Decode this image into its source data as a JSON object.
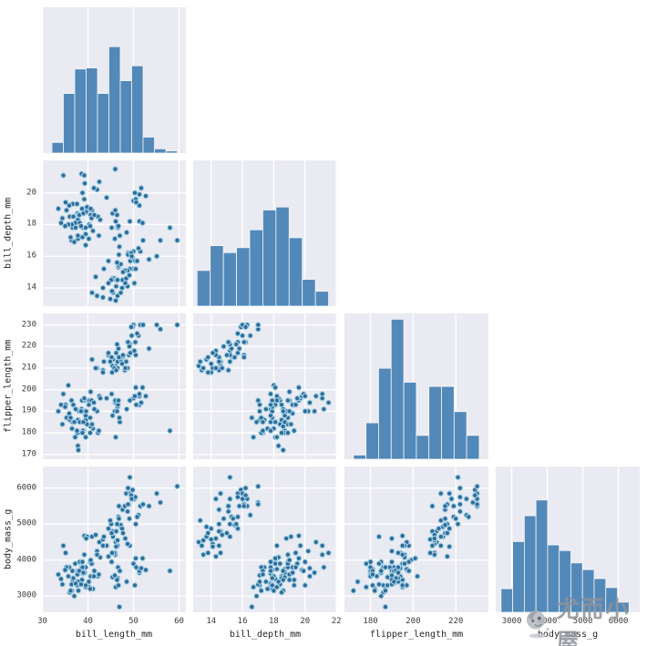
{
  "watermark": {
    "text": "尤而小屋",
    "logo": "mascot-avatar-icon"
  },
  "style": {
    "figure_bg": "#ffffff",
    "panel_bg": "#eaebf2",
    "grid_color": "#ffffff",
    "bar_color": "#5389b9",
    "bar_edge": "#f4f6f9",
    "dot_fill": "#2e6d99",
    "dot_edge": "#a9d2e8",
    "tick_color": "#3a3a3a",
    "label_color": "#262626",
    "watermark_color": "#8d939b"
  },
  "chart_data": {
    "type": "pairplot",
    "subtype": "lower-triangle corner pairplot: histograms on diagonal, scatter plots below",
    "grid": true,
    "legend": "none",
    "variables": [
      {
        "name": "bill_length_mm",
        "range": [
          29.9,
          61.5
        ],
        "x_ticks": [
          30,
          40,
          50,
          60
        ],
        "y_ticks": []
      },
      {
        "name": "bill_depth_mm",
        "range": [
          12.85,
          22.05
        ],
        "x_ticks": [
          14,
          16,
          18,
          20,
          22
        ],
        "y_ticks": [
          14,
          16,
          18,
          20
        ]
      },
      {
        "name": "flipper_length_mm",
        "range": [
          167.8,
          235.3
        ],
        "x_ticks": [
          180,
          200,
          220
        ],
        "y_ticks": [
          170,
          180,
          190,
          200,
          210,
          220,
          230
        ]
      },
      {
        "name": "body_mass_g",
        "range": [
          2550,
          6600
        ],
        "x_ticks": [
          3000,
          4000,
          5000,
          6000
        ],
        "y_ticks": [
          3000,
          4000,
          5000,
          6000
        ]
      }
    ],
    "histograms": [
      {
        "variable": "bill_length_mm",
        "bin_start": 32.1,
        "bin_end": 59.6,
        "peak_fraction": 0.73,
        "heights": [
          0.1,
          0.56,
          0.79,
          0.8,
          0.56,
          1.0,
          0.68,
          0.82,
          0.15,
          0.04,
          0.02
        ]
      },
      {
        "variable": "bill_depth_mm",
        "bin_start": 13.1,
        "bin_end": 21.5,
        "peak_fraction": 0.68,
        "heights": [
          0.36,
          0.61,
          0.54,
          0.59,
          0.77,
          0.97,
          1.0,
          0.69,
          0.27,
          0.15
        ]
      },
      {
        "variable": "flipper_length_mm",
        "bin_start": 172,
        "bin_end": 231,
        "peak_fraction": 0.96,
        "heights": [
          0.03,
          0.26,
          0.65,
          1.0,
          0.55,
          0.17,
          0.52,
          0.52,
          0.34,
          0.17
        ]
      },
      {
        "variable": "body_mass_g",
        "bin_start": 2700,
        "bin_end": 6300,
        "peak_fraction": 0.77,
        "heights": [
          0.21,
          0.63,
          0.86,
          1.0,
          0.6,
          0.55,
          0.44,
          0.38,
          0.3,
          0.22,
          0.09
        ]
      }
    ],
    "records_columns": [
      "bill_length_mm",
      "bill_depth_mm",
      "flipper_length_mm",
      "body_mass_g"
    ],
    "records": [
      [
        39.1,
        18.7,
        181,
        3750
      ],
      [
        39.5,
        17.4,
        186,
        3800
      ],
      [
        40.3,
        18.0,
        195,
        3250
      ],
      [
        36.7,
        19.3,
        193,
        3450
      ],
      [
        39.3,
        20.6,
        190,
        3650
      ],
      [
        38.9,
        17.8,
        181,
        3625
      ],
      [
        39.2,
        19.6,
        195,
        4675
      ],
      [
        34.1,
        18.1,
        193,
        3475
      ],
      [
        42.0,
        20.2,
        190,
        4250
      ],
      [
        37.8,
        17.1,
        186,
        3300
      ],
      [
        37.8,
        17.3,
        180,
        3700
      ],
      [
        41.1,
        17.6,
        182,
        3200
      ],
      [
        38.6,
        21.2,
        191,
        3800
      ],
      [
        34.6,
        21.1,
        198,
        4400
      ],
      [
        36.6,
        17.8,
        185,
        3700
      ],
      [
        38.7,
        19.0,
        195,
        3450
      ],
      [
        42.5,
        20.7,
        197,
        4500
      ],
      [
        34.4,
        18.4,
        184,
        3325
      ],
      [
        46.0,
        21.5,
        194,
        4200
      ],
      [
        37.8,
        18.3,
        174,
        3400
      ],
      [
        37.7,
        18.7,
        180,
        3600
      ],
      [
        35.9,
        19.2,
        189,
        3800
      ],
      [
        38.2,
        18.1,
        185,
        3950
      ],
      [
        38.8,
        17.2,
        180,
        3800
      ],
      [
        35.3,
        18.9,
        187,
        3800
      ],
      [
        40.6,
        18.6,
        183,
        3550
      ],
      [
        40.5,
        17.9,
        187,
        3200
      ],
      [
        37.9,
        18.6,
        172,
        3150
      ],
      [
        40.5,
        18.9,
        180,
        3950
      ],
      [
        39.5,
        16.7,
        178,
        3250
      ],
      [
        37.2,
        18.1,
        178,
        3900
      ],
      [
        39.5,
        17.8,
        188,
        3300
      ],
      [
        40.9,
        18.9,
        184,
        3900
      ],
      [
        36.4,
        17.0,
        195,
        3325
      ],
      [
        39.2,
        21.1,
        196,
        4150
      ],
      [
        38.8,
        20.0,
        190,
        3950
      ],
      [
        42.2,
        18.5,
        180,
        3550
      ],
      [
        37.6,
        19.3,
        181,
        3300
      ],
      [
        39.8,
        19.1,
        184,
        4650
      ],
      [
        36.5,
        18.0,
        182,
        3150
      ],
      [
        40.8,
        18.4,
        195,
        3900
      ],
      [
        36.0,
        18.5,
        186,
        3100
      ],
      [
        44.1,
        19.7,
        196,
        4400
      ],
      [
        37.0,
        16.9,
        185,
        3000
      ],
      [
        39.6,
        18.8,
        190,
        4600
      ],
      [
        35.1,
        19.4,
        193,
        4200
      ],
      [
        38.1,
        18.6,
        190,
        3700
      ],
      [
        40.2,
        17.1,
        193,
        3400
      ],
      [
        36.2,
        17.2,
        187,
        3150
      ],
      [
        41.3,
        20.3,
        194,
        3550
      ],
      [
        35.7,
        18.0,
        202,
        3550
      ],
      [
        37.3,
        17.8,
        191,
        3350
      ],
      [
        39.0,
        18.7,
        185,
        3650
      ],
      [
        38.5,
        17.9,
        190,
        3325
      ],
      [
        36.8,
        18.5,
        193,
        3500
      ],
      [
        42.7,
        18.3,
        196,
        4075
      ],
      [
        33.5,
        19.0,
        190,
        3600
      ],
      [
        41.4,
        18.6,
        191,
        3700
      ],
      [
        35.0,
        17.9,
        192,
        3725
      ],
      [
        40.6,
        19.0,
        199,
        4000
      ],
      [
        46.5,
        17.9,
        192,
        3500
      ],
      [
        50.0,
        19.5,
        196,
        3900
      ],
      [
        51.3,
        19.2,
        193,
        3650
      ],
      [
        45.4,
        18.7,
        188,
        3525
      ],
      [
        52.7,
        19.8,
        197,
        3725
      ],
      [
        45.2,
        17.8,
        198,
        3950
      ],
      [
        46.1,
        18.2,
        178,
        3250
      ],
      [
        51.3,
        18.2,
        197,
        3750
      ],
      [
        46.0,
        18.9,
        195,
        4150
      ],
      [
        51.3,
        19.9,
        198,
        3700
      ],
      [
        46.6,
        17.8,
        193,
        3800
      ],
      [
        51.7,
        20.3,
        194,
        3775
      ],
      [
        47.0,
        17.3,
        185,
        3700
      ],
      [
        52.0,
        18.1,
        201,
        4050
      ],
      [
        45.9,
        17.1,
        190,
        3575
      ],
      [
        50.5,
        19.6,
        201,
        4050
      ],
      [
        50.3,
        20.0,
        197,
        3300
      ],
      [
        58.0,
        17.8,
        181,
        3700
      ],
      [
        46.4,
        18.6,
        190,
        3450
      ],
      [
        49.2,
        18.2,
        195,
        4400
      ],
      [
        42.4,
        17.3,
        181,
        3600
      ],
      [
        48.5,
        17.5,
        191,
        3400
      ],
      [
        46.9,
        16.6,
        187,
        2700
      ],
      [
        50.6,
        19.4,
        193,
        3800
      ],
      [
        46.7,
        17.9,
        195,
        3300
      ],
      [
        46.1,
        13.2,
        211,
        4500
      ],
      [
        50.0,
        16.3,
        230,
        5700
      ],
      [
        48.7,
        14.1,
        210,
        4450
      ],
      [
        50.0,
        15.2,
        218,
        5700
      ],
      [
        47.6,
        14.5,
        215,
        5400
      ],
      [
        46.5,
        13.5,
        210,
        4550
      ],
      [
        45.4,
        14.6,
        211,
        4800
      ],
      [
        46.7,
        15.3,
        219,
        5200
      ],
      [
        43.3,
        13.4,
        209,
        4400
      ],
      [
        46.8,
        15.4,
        215,
        5150
      ],
      [
        40.9,
        13.7,
        214,
        4650
      ],
      [
        49.0,
        16.1,
        216,
        5550
      ],
      [
        45.5,
        13.7,
        214,
        4650
      ],
      [
        48.4,
        14.6,
        213,
        5850
      ],
      [
        45.8,
        14.6,
        210,
        4200
      ],
      [
        49.3,
        15.7,
        217,
        5850
      ],
      [
        42.0,
        13.5,
        210,
        4150
      ],
      [
        49.2,
        15.2,
        221,
        6300
      ],
      [
        46.2,
        14.5,
        209,
        4800
      ],
      [
        48.7,
        15.1,
        222,
        5350
      ],
      [
        50.2,
        14.3,
        218,
        5700
      ],
      [
        45.1,
        14.5,
        215,
        5000
      ],
      [
        46.5,
        14.5,
        213,
        4400
      ],
      [
        55.9,
        17.0,
        228,
        5600
      ],
      [
        44.5,
        14.3,
        216,
        4100
      ],
      [
        48.8,
        16.2,
        222,
        6000
      ],
      [
        47.2,
        13.7,
        214,
        4925
      ],
      [
        41.7,
        14.7,
        210,
        4700
      ],
      [
        53.4,
        15.8,
        219,
        5500
      ],
      [
        43.3,
        14.0,
        208,
        4575
      ],
      [
        48.1,
        15.1,
        209,
        5500
      ],
      [
        50.5,
        15.2,
        216,
        5000
      ],
      [
        49.8,
        15.9,
        229,
        5950
      ],
      [
        43.5,
        15.2,
        213,
        4650
      ],
      [
        51.5,
        16.3,
        230,
        5500
      ],
      [
        46.2,
        14.1,
        217,
        4375
      ],
      [
        55.1,
        16.0,
        230,
        5850
      ],
      [
        44.5,
        15.7,
        217,
        4875
      ],
      [
        48.8,
        16.1,
        222,
        5550
      ],
      [
        47.2,
        15.5,
        215,
        4975
      ],
      [
        46.8,
        16.1,
        215,
        5500
      ],
      [
        50.4,
        15.7,
        222,
        5750
      ],
      [
        47.5,
        14.0,
        212,
        4875
      ],
      [
        49.1,
        14.8,
        220,
        5150
      ],
      [
        51.1,
        16.5,
        225,
        5250
      ],
      [
        45.2,
        13.8,
        215,
        4750
      ],
      [
        50.8,
        15.7,
        226,
        5200
      ],
      [
        44.9,
        13.3,
        213,
        5100
      ],
      [
        48.2,
        14.3,
        210,
        4600
      ],
      [
        49.5,
        16.2,
        229,
        5800
      ],
      [
        46.4,
        15.6,
        221,
        5000
      ],
      [
        52.1,
        17.0,
        230,
        5550
      ],
      [
        45.3,
        13.8,
        208,
        4200
      ],
      [
        49.6,
        16.0,
        225,
        5700
      ],
      [
        47.7,
        15.0,
        216,
        4750
      ],
      [
        59.6,
        17.0,
        230,
        6050
      ]
    ]
  }
}
